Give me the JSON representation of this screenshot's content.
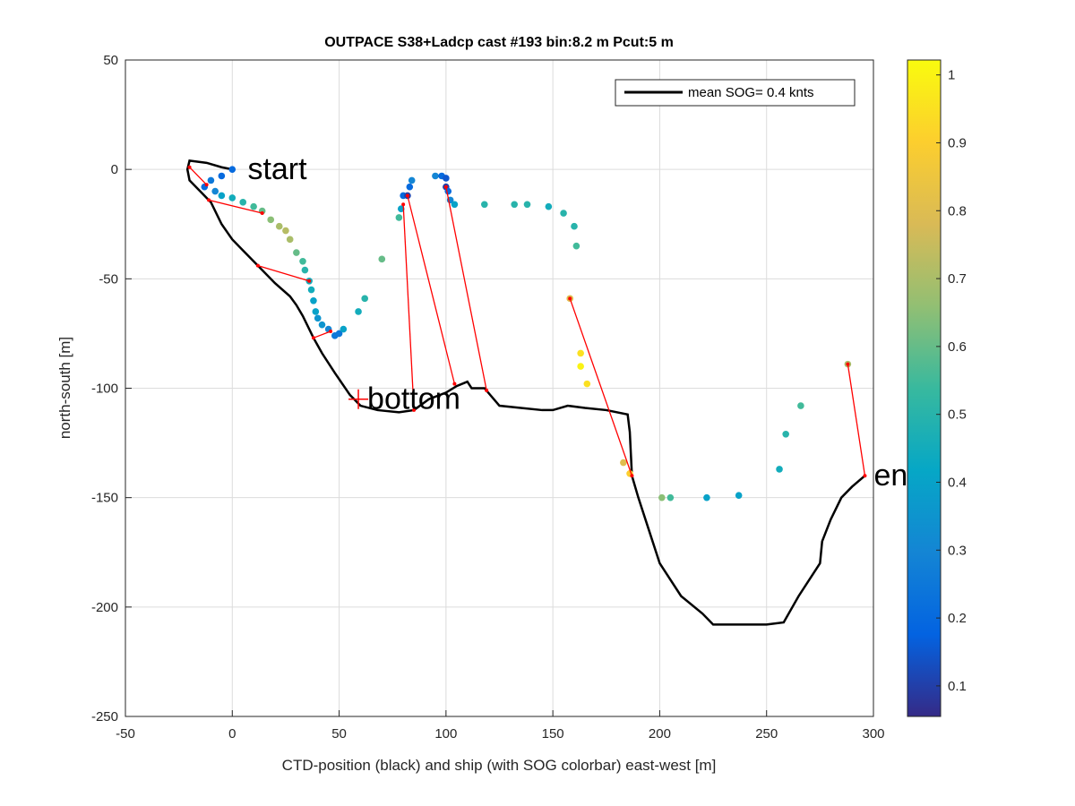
{
  "chart_data": {
    "type": "trajectory",
    "title": "OUTPACE S38+Ladcp cast #193 bin:8.2 m  Pcut:5 m",
    "xlabel": "CTD-position (black) and ship (with SOG colorbar) east-west [m]",
    "ylabel": "north-south [m]",
    "xlim": [
      -50,
      300
    ],
    "xticks": [
      -50,
      0,
      50,
      100,
      150,
      200,
      250,
      300
    ],
    "ylim": [
      -250,
      50
    ],
    "yticks": [
      -250,
      -200,
      -150,
      -100,
      -50,
      0,
      50
    ],
    "grid": true,
    "legend_position": "upper right",
    "line": {
      "name": "mean SOG=  0.4 knts",
      "color": "#000000",
      "x": [
        0,
        -5,
        -12,
        -20,
        -21,
        -20,
        -15,
        -10,
        -5,
        0,
        5,
        13,
        20,
        27,
        30,
        33,
        38,
        42,
        48,
        55,
        60,
        68,
        78,
        85,
        92,
        100,
        105,
        110,
        112,
        118,
        125,
        135,
        145,
        150,
        157,
        165,
        175,
        185,
        186,
        187,
        190,
        195,
        200,
        210,
        220,
        225,
        235,
        250,
        258,
        265,
        275,
        276,
        280,
        285,
        290,
        296
      ],
      "y": [
        0,
        1,
        3,
        4,
        0,
        -5,
        -10,
        -15,
        -25,
        -32,
        -37,
        -45,
        -52,
        -58,
        -62,
        -67,
        -77,
        -84,
        -93,
        -103,
        -108,
        -110,
        -111,
        -110,
        -105,
        -102,
        -99,
        -97,
        -100,
        -100,
        -108,
        -109,
        -110,
        -110,
        -108,
        -109,
        -110,
        -112,
        -120,
        -140,
        -150,
        -165,
        -180,
        -195,
        -203,
        -208,
        -208,
        -208,
        -207,
        -195,
        -180,
        -170,
        -160,
        -150,
        -145,
        -140
      ]
    },
    "ship": {
      "x": [
        0,
        -5,
        -10,
        -13,
        -8,
        -5,
        0,
        5,
        10,
        14,
        18,
        22,
        25,
        27,
        30,
        33,
        34,
        36,
        37,
        38,
        39,
        40,
        42,
        45,
        48,
        50,
        52,
        59,
        62,
        70,
        78,
        79,
        80,
        82,
        83,
        84,
        95,
        98,
        100,
        100,
        101,
        102,
        104,
        118,
        132,
        138,
        148,
        155,
        160,
        161,
        158,
        163,
        163,
        166,
        183,
        186,
        201,
        205,
        222,
        237,
        256,
        259,
        266,
        288
      ],
      "y": [
        0,
        -3,
        -5,
        -8,
        -10,
        -12,
        -13,
        -15,
        -17,
        -19,
        -23,
        -26,
        -28,
        -32,
        -38,
        -42,
        -46,
        -51,
        -55,
        -60,
        -65,
        -68,
        -71,
        -73,
        -76,
        -75,
        -73,
        -65,
        -59,
        -41,
        -22,
        -18,
        -12,
        -12,
        -8,
        -5,
        -3,
        -3,
        -4,
        -8,
        -10,
        -14,
        -16,
        -16,
        -16,
        -16,
        -17,
        -20,
        -26,
        -35,
        -59,
        -84,
        -90,
        -98,
        -134,
        -139,
        -150,
        -150,
        -150,
        -149,
        -137,
        -121,
        -108,
        -89
      ],
      "sog": [
        0.2,
        0.2,
        0.25,
        0.2,
        0.3,
        0.4,
        0.45,
        0.5,
        0.55,
        0.6,
        0.65,
        0.7,
        0.72,
        0.7,
        0.6,
        0.55,
        0.5,
        0.45,
        0.45,
        0.4,
        0.4,
        0.35,
        0.35,
        0.3,
        0.25,
        0.25,
        0.4,
        0.45,
        0.5,
        0.6,
        0.55,
        0.4,
        0.2,
        0.1,
        0.2,
        0.3,
        0.3,
        0.2,
        0.15,
        0.1,
        0.2,
        0.3,
        0.4,
        0.5,
        0.5,
        0.5,
        0.45,
        0.5,
        0.5,
        0.55,
        0.8,
        0.95,
        1.0,
        0.95,
        0.8,
        0.9,
        0.65,
        0.55,
        0.4,
        0.4,
        0.45,
        0.5,
        0.55,
        0.7
      ]
    },
    "segments": [
      {
        "x": [
          -20,
          -12
        ],
        "y": [
          1,
          -7
        ]
      },
      {
        "x": [
          -11,
          14
        ],
        "y": [
          -14,
          -20
        ]
      },
      {
        "x": [
          12,
          36
        ],
        "y": [
          -44,
          -51
        ]
      },
      {
        "x": [
          38,
          46
        ],
        "y": [
          -77,
          -74
        ]
      },
      {
        "x": [
          80,
          85
        ],
        "y": [
          -16,
          -110
        ]
      },
      {
        "x": [
          82,
          104
        ],
        "y": [
          -12,
          -98
        ]
      },
      {
        "x": [
          100,
          119
        ],
        "y": [
          -8,
          -101
        ]
      },
      {
        "x": [
          158,
          187
        ],
        "y": [
          -59,
          -140
        ]
      },
      {
        "x": [
          288,
          296
        ],
        "y": [
          -89,
          -140
        ]
      }
    ],
    "segment_color": "#ff0000",
    "annotations": [
      {
        "text": "start",
        "x": 3,
        "y": 0
      },
      {
        "text": "bottom",
        "x": 59,
        "y": -105
      },
      {
        "text": "end",
        "x": 296,
        "y": -140
      }
    ],
    "bottom_marker": {
      "x": 59,
      "y": -105,
      "color": "#ff0000"
    },
    "colorbar": {
      "clim": [
        0.055,
        1.022
      ],
      "ticks": [
        0.1,
        0.2,
        0.3,
        0.4,
        0.5,
        0.6,
        0.7,
        0.8,
        0.9,
        1
      ],
      "colormap": [
        "#352a87",
        "#0363e1",
        "#1485d4",
        "#06a7c6",
        "#38b99e",
        "#92bf73",
        "#d9ba56",
        "#fcce2e",
        "#f9fb0e"
      ]
    }
  }
}
